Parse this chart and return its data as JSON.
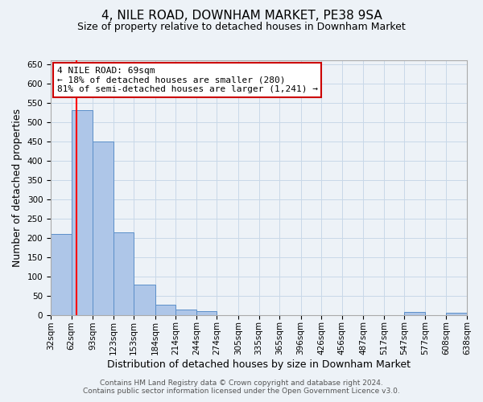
{
  "title": "4, NILE ROAD, DOWNHAM MARKET, PE38 9SA",
  "subtitle": "Size of property relative to detached houses in Downham Market",
  "xlabel": "Distribution of detached houses by size in Downham Market",
  "ylabel": "Number of detached properties",
  "footer_line1": "Contains HM Land Registry data © Crown copyright and database right 2024.",
  "footer_line2": "Contains public sector information licensed under the Open Government Licence v3.0.",
  "bin_edges": [
    32,
    62,
    93,
    123,
    153,
    184,
    214,
    244,
    274,
    305,
    335,
    365,
    396,
    426,
    456,
    487,
    517,
    547,
    577,
    608,
    638
  ],
  "bin_labels": [
    "32sqm",
    "62sqm",
    "93sqm",
    "123sqm",
    "153sqm",
    "184sqm",
    "214sqm",
    "244sqm",
    "274sqm",
    "305sqm",
    "335sqm",
    "365sqm",
    "396sqm",
    "426sqm",
    "456sqm",
    "487sqm",
    "517sqm",
    "547sqm",
    "577sqm",
    "608sqm",
    "638sqm"
  ],
  "bar_heights": [
    210,
    530,
    450,
    215,
    78,
    27,
    14,
    10,
    0,
    0,
    0,
    0,
    0,
    0,
    0,
    0,
    0,
    7,
    0,
    5
  ],
  "bar_color": "#aec6e8",
  "bar_edge_color": "#5b8fc9",
  "red_line_x": 69,
  "annotation_line1": "4 NILE ROAD: 69sqm",
  "annotation_line2": "← 18% of detached houses are smaller (280)",
  "annotation_line3": "81% of semi-detached houses are larger (1,241) →",
  "annotation_box_color": "#ffffff",
  "annotation_box_edge_color": "#cc0000",
  "ylim": [
    0,
    660
  ],
  "yticks": [
    0,
    50,
    100,
    150,
    200,
    250,
    300,
    350,
    400,
    450,
    500,
    550,
    600,
    650
  ],
  "grid_color": "#c8d8e8",
  "background_color": "#edf2f7",
  "title_fontsize": 11,
  "subtitle_fontsize": 9,
  "axis_label_fontsize": 9,
  "tick_fontsize": 7.5,
  "annotation_fontsize": 8,
  "footer_fontsize": 6.5
}
